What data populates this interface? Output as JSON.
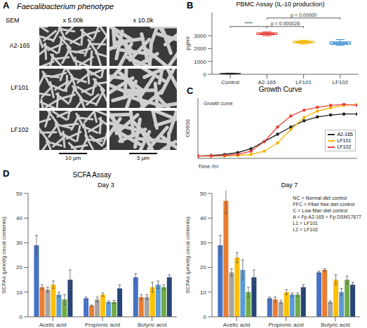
{
  "figure_a": {
    "panel": "A",
    "title": "Faecalibacterium phenotype",
    "method": "SEM",
    "magnifications": [
      "x 5.00k",
      "x 10.0k"
    ],
    "strains": [
      "A2-165",
      "LF101",
      "LF102"
    ],
    "scale_bars": [
      "10 μm",
      "5 μm"
    ]
  },
  "chart_data": [
    {
      "type": "box",
      "panel": "B",
      "title": "PBMC Assay (IL-10 production)",
      "y_label": "pg/ml",
      "categories": [
        "Control",
        "A2-165",
        "LF101",
        "LF102"
      ],
      "colors": [
        "#222222",
        "#e8403a",
        "#f2b705",
        "#3a8fd0"
      ],
      "boxes": [
        {
          "min": 10,
          "q1": 20,
          "median": 40,
          "q3": 70,
          "max": 90
        },
        {
          "min": 3000,
          "q1": 3080,
          "median": 3150,
          "q3": 3230,
          "max": 3300
        },
        {
          "min": 2350,
          "q1": 2430,
          "median": 2500,
          "q3": 2580,
          "max": 2650
        },
        {
          "min": 2250,
          "q1": 2330,
          "median": 2420,
          "q3": 2530,
          "max": 2700
        }
      ],
      "ylim": [
        0,
        4800
      ],
      "yticks": [
        0,
        1000,
        2000,
        3000
      ],
      "annotations": [
        {
          "text": "p = 0.00000",
          "from": "A2-165",
          "to": "LF102"
        },
        {
          "text": "****",
          "from": "Control",
          "to": "A2-165"
        },
        {
          "text": "p = 0.000026",
          "from": "A2-165",
          "to": "LF101"
        }
      ]
    },
    {
      "type": "line",
      "panel": "C",
      "title": "Growth Curve",
      "annotations": [
        "Growth curve"
      ],
      "x_label": "Time (h)",
      "y_label": "OD600",
      "x": [
        0,
        2,
        4,
        6,
        8,
        10,
        12,
        14,
        16,
        18,
        20,
        22,
        24
      ],
      "xlim": [
        0,
        24
      ],
      "ylim": [
        0,
        1.25
      ],
      "tick_labels": false,
      "legend": "lower right",
      "marker": "circle",
      "series": [
        {
          "name": "A2-165",
          "color": "#222222",
          "values": [
            0.05,
            0.06,
            0.08,
            0.12,
            0.2,
            0.35,
            0.5,
            0.65,
            0.78,
            0.86,
            0.9,
            0.92,
            0.92
          ]
        },
        {
          "name": "LF101",
          "color": "#f2b705",
          "values": [
            0.05,
            0.05,
            0.05,
            0.06,
            0.08,
            0.15,
            0.32,
            0.6,
            0.85,
            0.98,
            1.05,
            1.1,
            1.12
          ]
        },
        {
          "name": "LF102",
          "color": "#e8403a",
          "values": [
            0.05,
            0.05,
            0.06,
            0.08,
            0.15,
            0.35,
            0.65,
            0.88,
            1.0,
            1.06,
            1.1,
            1.12,
            1.1
          ]
        }
      ]
    },
    {
      "type": "bar",
      "panel": "D",
      "title": "SCFA Assay",
      "subtitle": "Day 3",
      "y_label": "SCFAs (μmol/g cecal contents)",
      "categories": [
        "Acetic acid",
        "Propionic acid",
        "Butyric acid"
      ],
      "ylim": [
        0,
        50
      ],
      "yticks": [
        0,
        10,
        20,
        30,
        40,
        50
      ],
      "series": [
        {
          "color": "#4472c4",
          "values": [
            29,
            7.5,
            16
          ],
          "errors": [
            4,
            0.5,
            1.5
          ]
        },
        {
          "color": "#ed7d31",
          "values": [
            12,
            4.5,
            8
          ],
          "errors": [
            1,
            0.3,
            1
          ]
        },
        {
          "color": "#a5a5a5",
          "values": [
            11,
            7,
            8
          ],
          "errors": [
            1,
            1,
            1
          ]
        },
        {
          "color": "#ffc000",
          "values": [
            13,
            9,
            12
          ],
          "errors": [
            1.5,
            0.7,
            2
          ]
        },
        {
          "color": "#5b9bd5",
          "values": [
            9,
            6,
            13
          ],
          "errors": [
            1,
            0.5,
            1.5
          ]
        },
        {
          "color": "#70ad47",
          "values": [
            7,
            6,
            12
          ],
          "errors": [
            2,
            0.7,
            1
          ]
        },
        {
          "color": "#264478",
          "values": [
            15,
            11.5,
            16
          ],
          "errors": [
            4,
            1.5,
            1
          ]
        }
      ]
    },
    {
      "type": "bar",
      "subtitle": "Day 7",
      "y_label": "SCFAs (μmol/g cecal contents)",
      "annotations": [
        "NC = Normal diet control",
        "FFC = Fiber free diet control",
        "C = Low fiber diet control",
        "A = Fp A2-165 = Fp DSM17677",
        "L1 = LF101",
        "L2 = LF102"
      ],
      "categories": [
        "Acetic acid",
        "Propionic acid",
        "Butyric acid"
      ],
      "ylim": [
        0,
        50
      ],
      "yticks": [
        0,
        10,
        20,
        30,
        40,
        50
      ],
      "series": [
        {
          "color": "#4472c4",
          "values": [
            29,
            7.5,
            18
          ],
          "errors": [
            4,
            0.5,
            0.5
          ]
        },
        {
          "color": "#ed7d31",
          "values": [
            47,
            7,
            19
          ],
          "errors": [
            5,
            1,
            0.5
          ]
        },
        {
          "color": "#a5a5a5",
          "values": [
            18,
            6,
            6
          ],
          "errors": [
            1.5,
            0.7,
            0.5
          ]
        },
        {
          "color": "#ffc000",
          "values": [
            24,
            10,
            15
          ],
          "errors": [
            2,
            1,
            2
          ]
        },
        {
          "color": "#5b9bd5",
          "values": [
            19,
            9,
            10
          ],
          "errors": [
            4,
            0.7,
            1.5
          ]
        },
        {
          "color": "#70ad47",
          "values": [
            10,
            9,
            15
          ],
          "errors": [
            2,
            0.7,
            1.5
          ]
        },
        {
          "color": "#264478",
          "values": [
            16,
            12,
            13
          ],
          "errors": [
            3,
            1,
            1
          ]
        }
      ]
    }
  ]
}
